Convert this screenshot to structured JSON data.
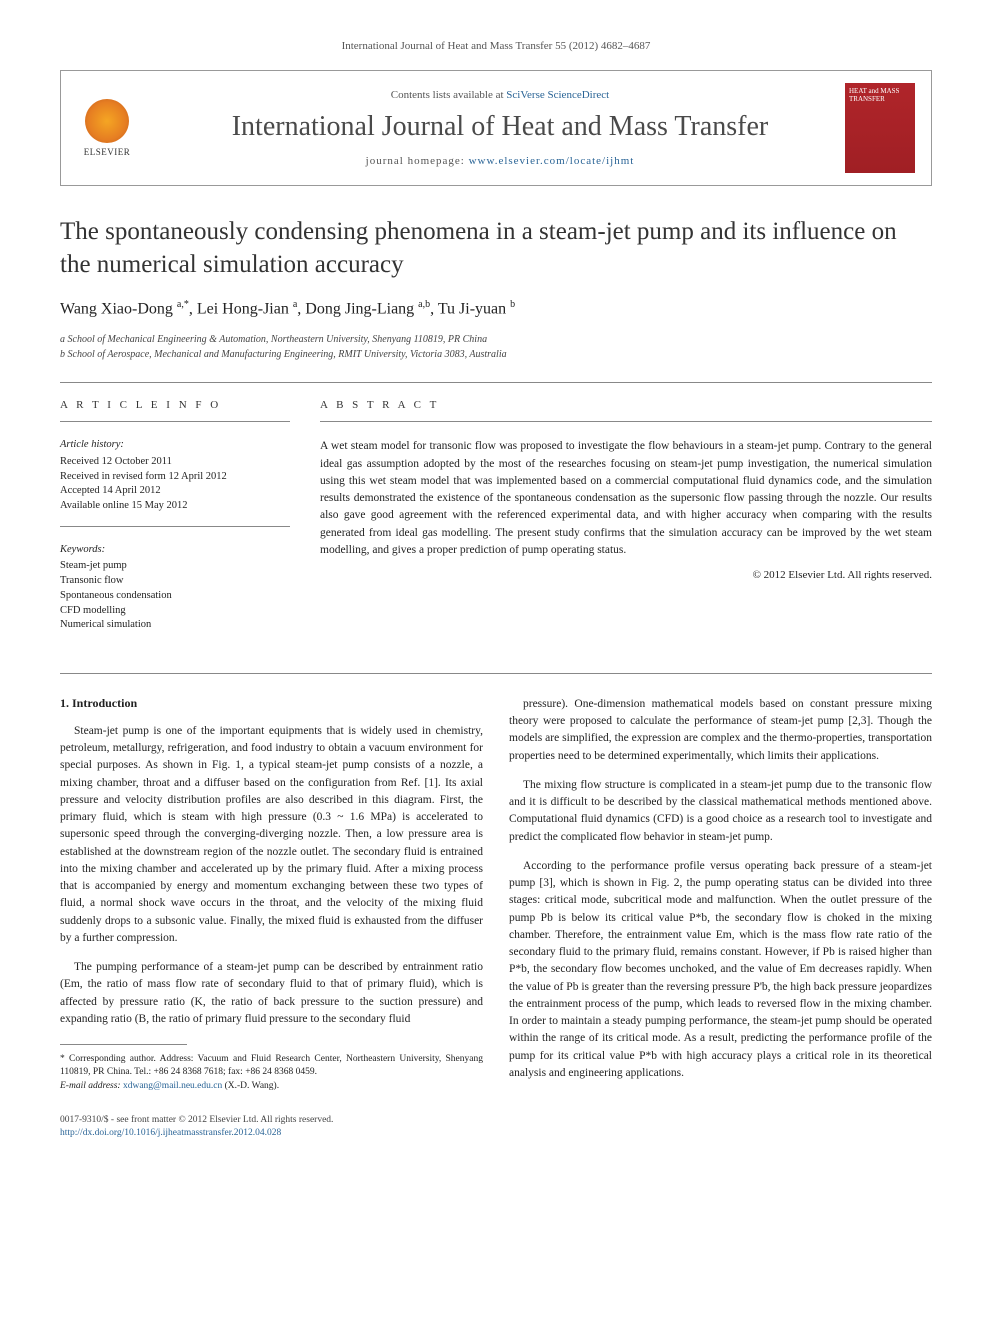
{
  "journal_header_line": "International Journal of Heat and Mass Transfer 55 (2012) 4682–4687",
  "header": {
    "elsevier_label": "ELSEVIER",
    "contents_prefix": "Contents lists available at ",
    "contents_link": "SciVerse ScienceDirect",
    "journal_title": "International Journal of Heat and Mass Transfer",
    "homepage_prefix": "journal homepage: ",
    "homepage_link": "www.elsevier.com/locate/ijhmt",
    "cover_text": "HEAT and MASS TRANSFER"
  },
  "title": "The spontaneously condensing phenomena in a steam-jet pump and its influence on the numerical simulation accuracy",
  "authors_html": "Wang Xiao-Dong <sup>a,*</sup>, Lei Hong-Jian <sup>a</sup>, Dong Jing-Liang <sup>a,b</sup>, Tu Ji-yuan <sup>b</sup>",
  "affiliations": [
    "a School of Mechanical Engineering & Automation, Northeastern University, Shenyang 110819, PR China",
    "b School of Aerospace, Mechanical and Manufacturing Engineering, RMIT University, Victoria 3083, Australia"
  ],
  "info": {
    "heading": "A R T I C L E   I N F O",
    "history_label": "Article history:",
    "history": [
      "Received 12 October 2011",
      "Received in revised form 12 April 2012",
      "Accepted 14 April 2012",
      "Available online 15 May 2012"
    ],
    "keywords_label": "Keywords:",
    "keywords": [
      "Steam-jet pump",
      "Transonic flow",
      "Spontaneous condensation",
      "CFD modelling",
      "Numerical simulation"
    ]
  },
  "abstract": {
    "heading": "A B S T R A C T",
    "text": "A wet steam model for transonic flow was proposed to investigate the flow behaviours in a steam-jet pump. Contrary to the general ideal gas assumption adopted by the most of the researches focusing on steam-jet pump investigation, the numerical simulation using this wet steam model that was implemented based on a commercial computational fluid dynamics code, and the simulation results demonstrated the existence of the spontaneous condensation as the supersonic flow passing through the nozzle. Our results also gave good agreement with the referenced experimental data, and with higher accuracy when comparing with the results generated from ideal gas modelling. The present study confirms that the simulation accuracy can be improved by the wet steam modelling, and gives a proper prediction of pump operating status.",
    "copyright": "© 2012 Elsevier Ltd. All rights reserved."
  },
  "body": {
    "section_1_heading": "1. Introduction",
    "col1": [
      "Steam-jet pump is one of the important equipments that is widely used in chemistry, petroleum, metallurgy, refrigeration, and food industry to obtain a vacuum environment for special purposes. As shown in Fig. 1, a typical steam-jet pump consists of a nozzle, a mixing chamber, throat and a diffuser based on the configuration from Ref. [1]. Its axial pressure and velocity distribution profiles are also described in this diagram. First, the primary fluid, which is steam with high pressure (0.3 ~ 1.6 MPa) is accelerated to supersonic speed through the converging-diverging nozzle. Then, a low pressure area is established at the downstream region of the nozzle outlet. The secondary fluid is entrained into the mixing chamber and accelerated up by the primary fluid. After a mixing process that is accompanied by energy and momentum exchanging between these two types of fluid, a normal shock wave occurs in the throat, and the velocity of the mixing fluid suddenly drops to a subsonic value. Finally, the mixed fluid is exhausted from the diffuser by a further compression.",
      "The pumping performance of a steam-jet pump can be described by entrainment ratio (Em, the ratio of mass flow rate of secondary fluid to that of primary fluid), which is affected by pressure ratio (K, the ratio of back pressure to the suction pressure) and expanding ratio (B, the ratio of primary fluid pressure to the secondary fluid"
    ],
    "col2": [
      "pressure). One-dimension mathematical models based on constant pressure mixing theory were proposed to calculate the performance of steam-jet pump [2,3]. Though the models are simplified, the expression are complex and the thermo-properties, transportation properties need to be determined experimentally, which limits their applications.",
      "The mixing flow structure is complicated in a steam-jet pump due to the transonic flow and it is difficult to be described by the classical mathematical methods mentioned above. Computational fluid dynamics (CFD) is a good choice as a research tool to investigate and predict the complicated flow behavior in steam-jet pump.",
      "According to the performance profile versus operating back pressure of a steam-jet pump [3], which is shown in Fig. 2, the pump operating status can be divided into three stages: critical mode, subcritical mode and malfunction. When the outlet pressure of the pump Pb is below its critical value P*b, the secondary flow is choked in the mixing chamber. Therefore, the entrainment value Em, which is the mass flow rate ratio of the secondary fluid to the primary fluid, remains constant. However, if Pb is raised higher than P*b, the secondary flow becomes unchoked, and the value of Em decreases rapidly. When the value of Pb is greater than the reversing pressure P'b, the high back pressure jeopardizes the entrainment process of the pump, which leads to reversed flow in the mixing chamber. In order to maintain a steady pumping performance, the steam-jet pump should be operated within the range of its critical mode. As a result, predicting the performance profile of the pump for its critical value P*b with high accuracy plays a critical role in its theoretical analysis and engineering applications."
    ]
  },
  "footnote": {
    "corresponding": "* Corresponding author. Address: Vacuum and Fluid Research Center, Northeastern University, Shenyang 110819, PR China. Tel.: +86 24 8368 7618; fax: +86 24 8368 0459.",
    "email_label": "E-mail address: ",
    "email": "xdwang@mail.neu.edu.cn",
    "email_suffix": " (X.-D. Wang)."
  },
  "page_footer": {
    "line1": "0017-9310/$ - see front matter © 2012 Elsevier Ltd. All rights reserved.",
    "doi_url": "http://dx.doi.org/10.1016/j.ijheatmasstransfer.2012.04.028"
  },
  "colors": {
    "link": "#2a6496",
    "elsevier_orange": "#e67e22",
    "cover_red": "#b0252a",
    "text": "#222222",
    "rule": "#888888"
  },
  "typography": {
    "title_fontsize": 25,
    "journal_title_fontsize": 28,
    "body_fontsize": 11.5,
    "footnote_fontsize": 9.5
  }
}
